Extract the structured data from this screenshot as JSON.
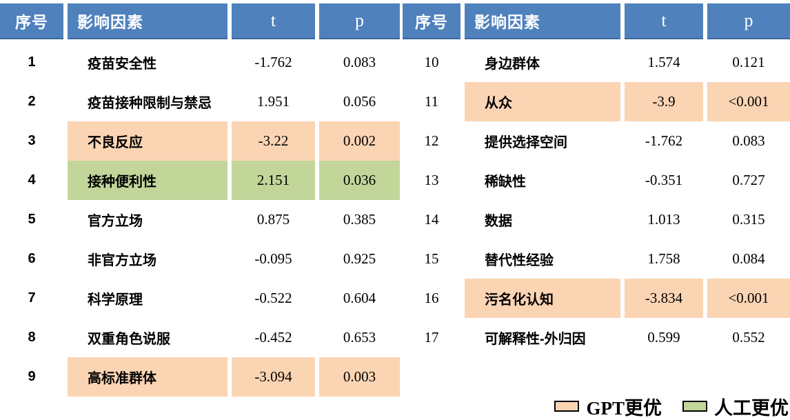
{
  "header": {
    "col_index": "序号",
    "col_factor": "影响因素",
    "col_t": "t",
    "col_p": "p"
  },
  "tables": [
    {
      "id": "left",
      "rows": [
        {
          "index": "1",
          "factor": "疫苗安全性",
          "t": "-1.762",
          "p": "0.083",
          "highlight": null
        },
        {
          "index": "2",
          "factor": "疫苗接种限制与禁忌",
          "t": "1.951",
          "p": "0.056",
          "highlight": null
        },
        {
          "index": "3",
          "factor": "不良反应",
          "t": "-3.22",
          "p": "0.002",
          "highlight": "gpt"
        },
        {
          "index": "4",
          "factor": "接种便利性",
          "t": "2.151",
          "p": "0.036",
          "highlight": "human"
        },
        {
          "index": "5",
          "factor": "官方立场",
          "t": "0.875",
          "p": "0.385",
          "highlight": null
        },
        {
          "index": "6",
          "factor": "非官方立场",
          "t": "-0.095",
          "p": "0.925",
          "highlight": null
        },
        {
          "index": "7",
          "factor": "科学原理",
          "t": "-0.522",
          "p": "0.604",
          "highlight": null
        },
        {
          "index": "8",
          "factor": "双重角色说服",
          "t": "-0.452",
          "p": "0.653",
          "highlight": null
        },
        {
          "index": "9",
          "factor": "高标准群体",
          "t": "-3.094",
          "p": "0.003",
          "highlight": "gpt"
        }
      ]
    },
    {
      "id": "right",
      "rows": [
        {
          "index": "10",
          "factor": "身边群体",
          "t": "1.574",
          "p": "0.121",
          "highlight": null
        },
        {
          "index": "11",
          "factor": "从众",
          "t": "-3.9",
          "p": "<0.001",
          "highlight": "gpt"
        },
        {
          "index": "12",
          "factor": "提供选择空间",
          "t": "-1.762",
          "p": "0.083",
          "highlight": null
        },
        {
          "index": "13",
          "factor": "稀缺性",
          "t": "-0.351",
          "p": "0.727",
          "highlight": null
        },
        {
          "index": "14",
          "factor": "数据",
          "t": "1.013",
          "p": "0.315",
          "highlight": null
        },
        {
          "index": "15",
          "factor": "替代性经验",
          "t": "1.758",
          "p": "0.084",
          "highlight": null
        },
        {
          "index": "16",
          "factor": "污名化认知",
          "t": "-3.834",
          "p": "<0.001",
          "highlight": "gpt"
        },
        {
          "index": "17",
          "factor": "可解释性-外归因",
          "t": "0.599",
          "p": "0.552",
          "highlight": null
        }
      ]
    }
  ],
  "legend": {
    "items": [
      {
        "key": "gpt",
        "label": "GPT更优"
      },
      {
        "key": "human",
        "label": "人工更优"
      }
    ]
  },
  "colors": {
    "header_bg": "#4f81bd",
    "gpt_highlight": "#fbd4b4",
    "human_highlight": "#c2d69a",
    "header_text": "#ffffff",
    "body_text": "#000000"
  }
}
